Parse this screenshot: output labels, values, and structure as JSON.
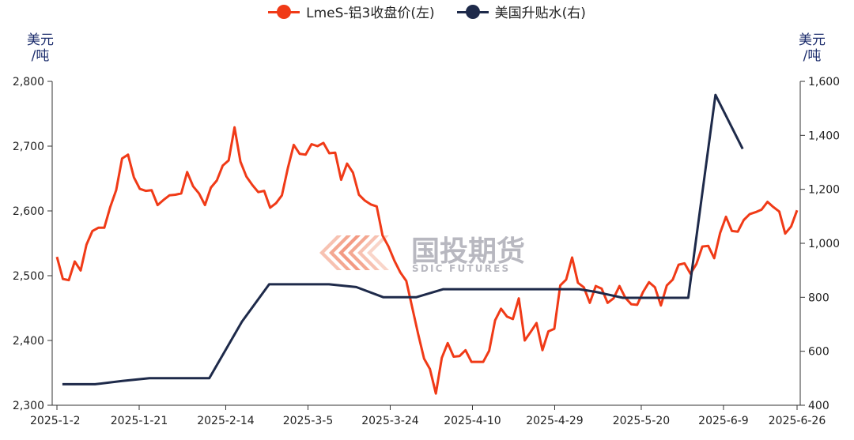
{
  "legend": {
    "series1": "LmeS-铝3收盘价(左)",
    "series2": "美国升贴水(右)"
  },
  "units": {
    "left": "美元/吨",
    "left_line1": "美元",
    "left_line2": "/吨",
    "right_line1": "美元",
    "right_line2": "/吨"
  },
  "watermark": {
    "cn": "国投期货",
    "en": "SDIC FUTURES"
  },
  "colors": {
    "series1": "#f03a17",
    "series2": "#1e2a4a",
    "axis": "#333333",
    "unit": "#1a2b6b"
  },
  "chart_data": {
    "type": "line",
    "x_labels": [
      "2025-1-2",
      "2025-1-21",
      "2025-2-14",
      "2025-3-5",
      "2025-3-24",
      "2025-4-10",
      "2025-4-29",
      "2025-5-20",
      "2025-6-9",
      "2025-6-26"
    ],
    "y_left": {
      "ticks": [
        "2,300",
        "2,400",
        "2,500",
        "2,600",
        "2,700",
        "2,800"
      ],
      "min": 2300,
      "max": 2800
    },
    "y_right": {
      "ticks": [
        "400",
        "600",
        "800",
        "1,000",
        "1,200",
        "1,400",
        "1,600"
      ],
      "min": 400,
      "max": 1600
    },
    "series": [
      {
        "name": "LmeS-铝3收盘价(左)",
        "axis": "left",
        "x_range": [
          0,
          136
        ],
        "values": [
          2529,
          2495,
          2493,
          2522,
          2508,
          2548,
          2569,
          2574,
          2574,
          2606,
          2632,
          2681,
          2687,
          2652,
          2634,
          2631,
          2632,
          2609,
          2617,
          2624,
          2625,
          2627,
          2660,
          2638,
          2627,
          2609,
          2636,
          2647,
          2670,
          2678,
          2729,
          2676,
          2653,
          2640,
          2629,
          2631,
          2605,
          2612,
          2624,
          2666,
          2702,
          2688,
          2687,
          2703,
          2700,
          2705,
          2689,
          2690,
          2648,
          2673,
          2659,
          2625,
          2616,
          2610,
          2607,
          2562,
          2545,
          2523,
          2505,
          2492,
          2451,
          2410,
          2372,
          2356,
          2318,
          2373,
          2396,
          2375,
          2376,
          2385,
          2367,
          2367,
          2367,
          2384,
          2431,
          2449,
          2437,
          2433,
          2465,
          2400,
          2413,
          2427,
          2385,
          2414,
          2418,
          2485,
          2494,
          2528,
          2489,
          2482,
          2458,
          2484,
          2480,
          2458,
          2465,
          2484,
          2466,
          2456,
          2455,
          2475,
          2490,
          2482,
          2454,
          2485,
          2494,
          2517,
          2519,
          2503,
          2518,
          2545,
          2546,
          2527,
          2566,
          2591,
          2569,
          2568,
          2586,
          2595,
          2598,
          2602,
          2614,
          2606,
          2599,
          2565,
          2576,
          2601
        ]
      },
      {
        "name": "美国升贴水(右)",
        "axis": "right",
        "points": [
          [
            1,
            478
          ],
          [
            7,
            478
          ],
          [
            12,
            490
          ],
          [
            17,
            500
          ],
          [
            28,
            500
          ],
          [
            34,
            710
          ],
          [
            39,
            848
          ],
          [
            50,
            848
          ],
          [
            55,
            838
          ],
          [
            60,
            800
          ],
          [
            66,
            800
          ],
          [
            71,
            830
          ],
          [
            86,
            830
          ],
          [
            91,
            830
          ],
          [
            96,
            830
          ],
          [
            99,
            820
          ],
          [
            104,
            798
          ],
          [
            110,
            798
          ],
          [
            116,
            798
          ],
          [
            121,
            1550
          ],
          [
            126,
            1350
          ]
        ]
      }
    ]
  }
}
